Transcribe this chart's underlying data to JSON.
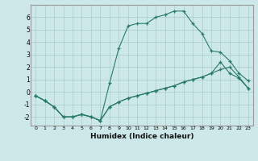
{
  "xlabel": "Humidex (Indice chaleur)",
  "ylabel": "",
  "background_color": "#cce8e8",
  "grid_color": "#aacccc",
  "line_color": "#2a7a6a",
  "xlim": [
    -0.5,
    23.5
  ],
  "ylim": [
    -2.7,
    7.0
  ],
  "xticks": [
    0,
    1,
    2,
    3,
    4,
    5,
    6,
    7,
    8,
    9,
    10,
    11,
    12,
    13,
    14,
    15,
    16,
    17,
    18,
    19,
    20,
    21,
    22,
    23
  ],
  "yticks": [
    -2,
    -1,
    0,
    1,
    2,
    3,
    4,
    5,
    6
  ],
  "line1_x": [
    0,
    1,
    2,
    3,
    4,
    5,
    6,
    7,
    8,
    9,
    10,
    11,
    12,
    13,
    14,
    15,
    16,
    17,
    18,
    19,
    20,
    21,
    22,
    23
  ],
  "line1_y": [
    -0.3,
    -0.7,
    -1.2,
    -2.0,
    -2.0,
    -1.8,
    -2.0,
    -2.3,
    -1.2,
    -0.8,
    -0.5,
    -0.3,
    -0.1,
    0.1,
    0.3,
    0.5,
    0.8,
    1.0,
    1.2,
    1.5,
    1.8,
    2.0,
    1.2,
    0.3
  ],
  "line2_x": [
    0,
    1,
    2,
    3,
    4,
    5,
    6,
    7,
    8,
    9,
    10,
    11,
    12,
    13,
    14,
    15,
    16,
    17,
    18,
    19,
    20,
    21,
    22,
    23
  ],
  "line2_y": [
    -0.3,
    -0.7,
    -1.2,
    -2.0,
    -2.0,
    -1.8,
    -2.0,
    -2.3,
    0.7,
    3.5,
    5.3,
    5.5,
    5.5,
    6.0,
    6.2,
    6.5,
    6.5,
    5.5,
    4.7,
    3.3,
    3.2,
    2.5,
    1.5,
    0.9
  ],
  "line3_x": [
    0,
    1,
    2,
    3,
    4,
    5,
    6,
    7,
    8,
    9,
    10,
    11,
    12,
    13,
    14,
    15,
    16,
    17,
    18,
    19,
    20,
    21,
    22,
    23
  ],
  "line3_y": [
    -0.3,
    -0.7,
    -1.2,
    -2.0,
    -2.0,
    -1.8,
    -2.0,
    -2.3,
    -1.2,
    -0.8,
    -0.5,
    -0.3,
    -0.1,
    0.1,
    0.3,
    0.5,
    0.8,
    1.0,
    1.2,
    1.5,
    2.4,
    1.5,
    1.1,
    0.3
  ]
}
